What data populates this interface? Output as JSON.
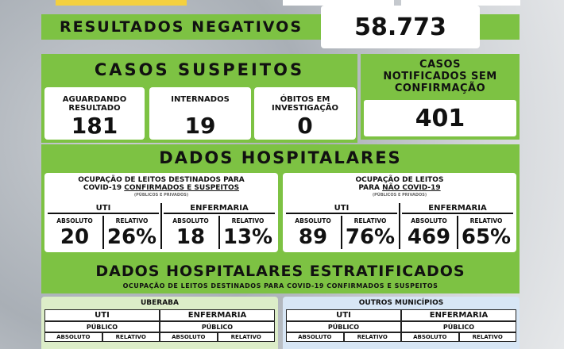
{
  "header": {
    "negative_label": "RESULTADOS NEGATIVOS",
    "negative_value": "58.773"
  },
  "suspects": {
    "title": "CASOS SUSPEITOS",
    "cards": [
      {
        "label": "AGUARDANDO RESULTADO",
        "value": "181"
      },
      {
        "label": "INTERNADOS",
        "value": "19"
      },
      {
        "label": "ÓBITOS EM INVESTIGAÇÃO",
        "value": "0"
      }
    ]
  },
  "notified": {
    "title_line1": "CASOS",
    "title_line2": "NOTIFICADOS SEM",
    "title_line3": "CONFIRMAÇÃO",
    "value": "401"
  },
  "hospital": {
    "title": "DADOS HOSPITALARES",
    "covid": {
      "title_line1": "OCUPAÇÃO DE LEITOS DESTINADOS PARA",
      "title_line2a": "COVID-19 ",
      "title_line2b": "CONFIRMADOS E SUSPEITOS",
      "subtitle": "(PÚBLICOS E PRIVADOS)",
      "uti_label": "UTI",
      "enf_label": "ENFERMARIA",
      "abs_label": "ABSOLUTO",
      "rel_label": "RELATIVO",
      "uti_abs": "20",
      "uti_rel": "26%",
      "enf_abs": "18",
      "enf_rel": "13%"
    },
    "non_covid": {
      "title_line1": "OCUPAÇÃO DE LEITOS",
      "title_line2a": "PARA ",
      "title_line2b": "NÃO COVID-19",
      "subtitle": "(PÚBLICOS E PRIVADOS)",
      "uti_label": "UTI",
      "enf_label": "ENFERMARIA",
      "abs_label": "ABSOLUTO",
      "rel_label": "RELATIVO",
      "uti_abs": "89",
      "uti_rel": "76%",
      "enf_abs": "469",
      "enf_rel": "65%"
    }
  },
  "stratified": {
    "title": "DADOS HOSPITALARES ESTRATIFICADOS",
    "subtitle": "OCUPAÇÃO DE LEITOS DESTINADOS PARA COVID-19 CONFIRMADOS E SUSPEITOS",
    "panels": [
      {
        "name": "UBERABA",
        "uti": "UTI",
        "enf": "ENFERMARIA",
        "sector": "PÚBLICO",
        "abs": "ABSOLUTO",
        "rel": "RELATIVO"
      },
      {
        "name": "OUTROS MUNICÍPIOS",
        "uti": "UTI",
        "enf": "ENFERMARIA",
        "sector": "PÚBLICO",
        "abs": "ABSOLUTO",
        "rel": "RELATIVO"
      }
    ]
  },
  "colors": {
    "green": "#7dc243",
    "light_green_panel": "#dcedc8",
    "light_blue_panel": "#d7e6f5",
    "yellow_accent": "#f4d03f"
  }
}
